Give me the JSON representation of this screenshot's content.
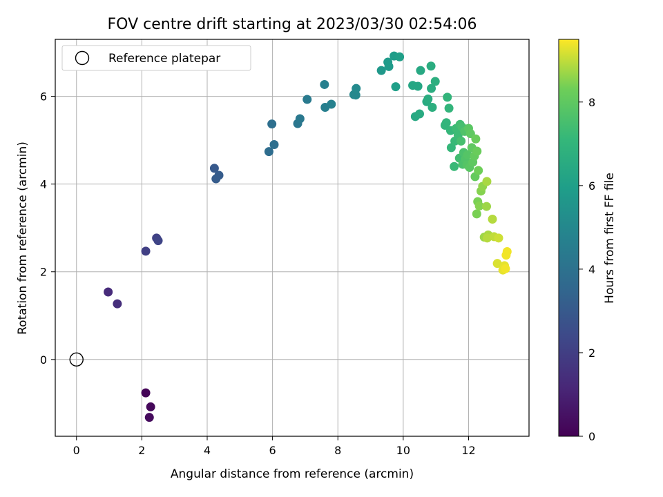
{
  "chart_data": {
    "type": "scatter",
    "title": "FOV centre drift starting at 2023/03/30 02:54:06",
    "xlabel": "Angular distance from reference (arcmin)",
    "ylabel": "Rotation from reference (arcmin)",
    "xlim": [
      -0.65,
      13.85
    ],
    "ylim": [
      -1.75,
      7.3
    ],
    "xticks": [
      0,
      2,
      4,
      6,
      8,
      10,
      12
    ],
    "yticks": [
      0,
      2,
      4,
      6
    ],
    "grid": true,
    "legend": {
      "position": "top-left",
      "entries": [
        "Reference platepar"
      ]
    },
    "reference_point": {
      "x": 0,
      "y": 0,
      "label": "Reference platepar"
    },
    "colorbar": {
      "label": "Hours from first FF file",
      "colormap": "viridis",
      "range": [
        0,
        9.5
      ],
      "ticks": [
        0,
        2,
        4,
        6,
        8
      ]
    },
    "points": [
      {
        "x": 2.12,
        "y": -0.76,
        "c": 0.1
      },
      {
        "x": 2.27,
        "y": -1.08,
        "c": 0.2
      },
      {
        "x": 2.23,
        "y": -1.32,
        "c": 0.3
      },
      {
        "x": 0.97,
        "y": 1.54,
        "c": 1.3
      },
      {
        "x": 1.25,
        "y": 1.27,
        "c": 1.4
      },
      {
        "x": 2.12,
        "y": 2.47,
        "c": 2.0
      },
      {
        "x": 2.45,
        "y": 2.77,
        "c": 2.1
      },
      {
        "x": 2.5,
        "y": 2.71,
        "c": 2.2
      },
      {
        "x": 4.22,
        "y": 4.36,
        "c": 3.0
      },
      {
        "x": 4.36,
        "y": 4.2,
        "c": 3.1
      },
      {
        "x": 4.27,
        "y": 4.12,
        "c": 3.1
      },
      {
        "x": 5.89,
        "y": 4.74,
        "c": 3.8
      },
      {
        "x": 6.05,
        "y": 4.9,
        "c": 3.9
      },
      {
        "x": 5.98,
        "y": 5.37,
        "c": 3.9
      },
      {
        "x": 6.77,
        "y": 5.38,
        "c": 4.2
      },
      {
        "x": 6.84,
        "y": 5.49,
        "c": 4.3
      },
      {
        "x": 7.06,
        "y": 5.93,
        "c": 4.4
      },
      {
        "x": 7.59,
        "y": 6.27,
        "c": 4.6
      },
      {
        "x": 7.61,
        "y": 5.75,
        "c": 4.6
      },
      {
        "x": 7.8,
        "y": 5.82,
        "c": 4.7
      },
      {
        "x": 8.49,
        "y": 6.04,
        "c": 5.0
      },
      {
        "x": 8.55,
        "y": 6.03,
        "c": 5.0
      },
      {
        "x": 8.56,
        "y": 6.18,
        "c": 5.1
      },
      {
        "x": 9.33,
        "y": 6.59,
        "c": 5.7
      },
      {
        "x": 9.53,
        "y": 6.78,
        "c": 5.8
      },
      {
        "x": 9.56,
        "y": 6.68,
        "c": 5.8
      },
      {
        "x": 9.72,
        "y": 6.92,
        "c": 5.9
      },
      {
        "x": 9.89,
        "y": 6.9,
        "c": 6.0
      },
      {
        "x": 9.77,
        "y": 6.22,
        "c": 6.0
      },
      {
        "x": 10.29,
        "y": 6.25,
        "c": 6.3
      },
      {
        "x": 10.45,
        "y": 6.23,
        "c": 6.3
      },
      {
        "x": 10.53,
        "y": 6.59,
        "c": 6.4
      },
      {
        "x": 10.37,
        "y": 5.54,
        "c": 6.4
      },
      {
        "x": 10.5,
        "y": 5.6,
        "c": 6.5
      },
      {
        "x": 10.72,
        "y": 5.88,
        "c": 6.5
      },
      {
        "x": 10.76,
        "y": 5.94,
        "c": 6.6
      },
      {
        "x": 10.85,
        "y": 6.69,
        "c": 6.6
      },
      {
        "x": 10.86,
        "y": 6.18,
        "c": 6.6
      },
      {
        "x": 10.89,
        "y": 5.75,
        "c": 6.7
      },
      {
        "x": 10.98,
        "y": 6.34,
        "c": 6.7
      },
      {
        "x": 11.28,
        "y": 5.34,
        "c": 7.0
      },
      {
        "x": 11.32,
        "y": 5.4,
        "c": 7.0
      },
      {
        "x": 11.35,
        "y": 5.98,
        "c": 7.0
      },
      {
        "x": 11.4,
        "y": 5.73,
        "c": 7.0
      },
      {
        "x": 11.45,
        "y": 5.22,
        "c": 7.1
      },
      {
        "x": 11.47,
        "y": 4.83,
        "c": 7.1
      },
      {
        "x": 11.56,
        "y": 4.4,
        "c": 7.2
      },
      {
        "x": 11.58,
        "y": 4.98,
        "c": 7.2
      },
      {
        "x": 11.62,
        "y": 5.27,
        "c": 7.3
      },
      {
        "x": 11.68,
        "y": 5.12,
        "c": 7.3
      },
      {
        "x": 11.72,
        "y": 4.59,
        "c": 7.4
      },
      {
        "x": 11.74,
        "y": 5.36,
        "c": 7.4
      },
      {
        "x": 11.77,
        "y": 4.98,
        "c": 7.5
      },
      {
        "x": 11.8,
        "y": 5.3,
        "c": 7.5
      },
      {
        "x": 11.82,
        "y": 4.45,
        "c": 7.6
      },
      {
        "x": 11.85,
        "y": 4.72,
        "c": 7.6
      },
      {
        "x": 11.88,
        "y": 5.2,
        "c": 7.7
      },
      {
        "x": 11.9,
        "y": 4.57,
        "c": 7.7
      },
      {
        "x": 11.95,
        "y": 4.44,
        "c": 7.8
      },
      {
        "x": 11.97,
        "y": 4.67,
        "c": 7.8
      },
      {
        "x": 12.0,
        "y": 5.27,
        "c": 7.9
      },
      {
        "x": 12.03,
        "y": 4.38,
        "c": 7.9
      },
      {
        "x": 12.06,
        "y": 5.15,
        "c": 8.0
      },
      {
        "x": 12.1,
        "y": 4.83,
        "c": 8.0
      },
      {
        "x": 12.13,
        "y": 4.5,
        "c": 8.0
      },
      {
        "x": 12.18,
        "y": 4.64,
        "c": 8.1
      },
      {
        "x": 12.2,
        "y": 4.17,
        "c": 8.1
      },
      {
        "x": 12.22,
        "y": 5.03,
        "c": 8.2
      },
      {
        "x": 12.26,
        "y": 4.75,
        "c": 8.2
      },
      {
        "x": 12.3,
        "y": 4.31,
        "c": 8.3
      },
      {
        "x": 12.25,
        "y": 3.32,
        "c": 8.4
      },
      {
        "x": 12.28,
        "y": 3.6,
        "c": 8.4
      },
      {
        "x": 12.33,
        "y": 3.5,
        "c": 8.5
      },
      {
        "x": 12.38,
        "y": 3.84,
        "c": 8.5
      },
      {
        "x": 12.43,
        "y": 3.95,
        "c": 8.6
      },
      {
        "x": 12.48,
        "y": 2.79,
        "c": 8.7
      },
      {
        "x": 12.55,
        "y": 3.49,
        "c": 8.7
      },
      {
        "x": 12.56,
        "y": 4.06,
        "c": 8.8
      },
      {
        "x": 12.6,
        "y": 2.84,
        "c": 8.8
      },
      {
        "x": 12.57,
        "y": 2.77,
        "c": 8.9
      },
      {
        "x": 12.73,
        "y": 3.2,
        "c": 8.9
      },
      {
        "x": 12.78,
        "y": 2.8,
        "c": 9.0
      },
      {
        "x": 12.92,
        "y": 2.77,
        "c": 9.1
      },
      {
        "x": 12.88,
        "y": 2.19,
        "c": 9.2
      },
      {
        "x": 13.05,
        "y": 2.04,
        "c": 9.3
      },
      {
        "x": 13.1,
        "y": 2.14,
        "c": 9.3
      },
      {
        "x": 13.15,
        "y": 2.38,
        "c": 9.4
      },
      {
        "x": 13.18,
        "y": 2.46,
        "c": 9.4
      },
      {
        "x": 13.13,
        "y": 2.07,
        "c": 9.4
      }
    ]
  }
}
